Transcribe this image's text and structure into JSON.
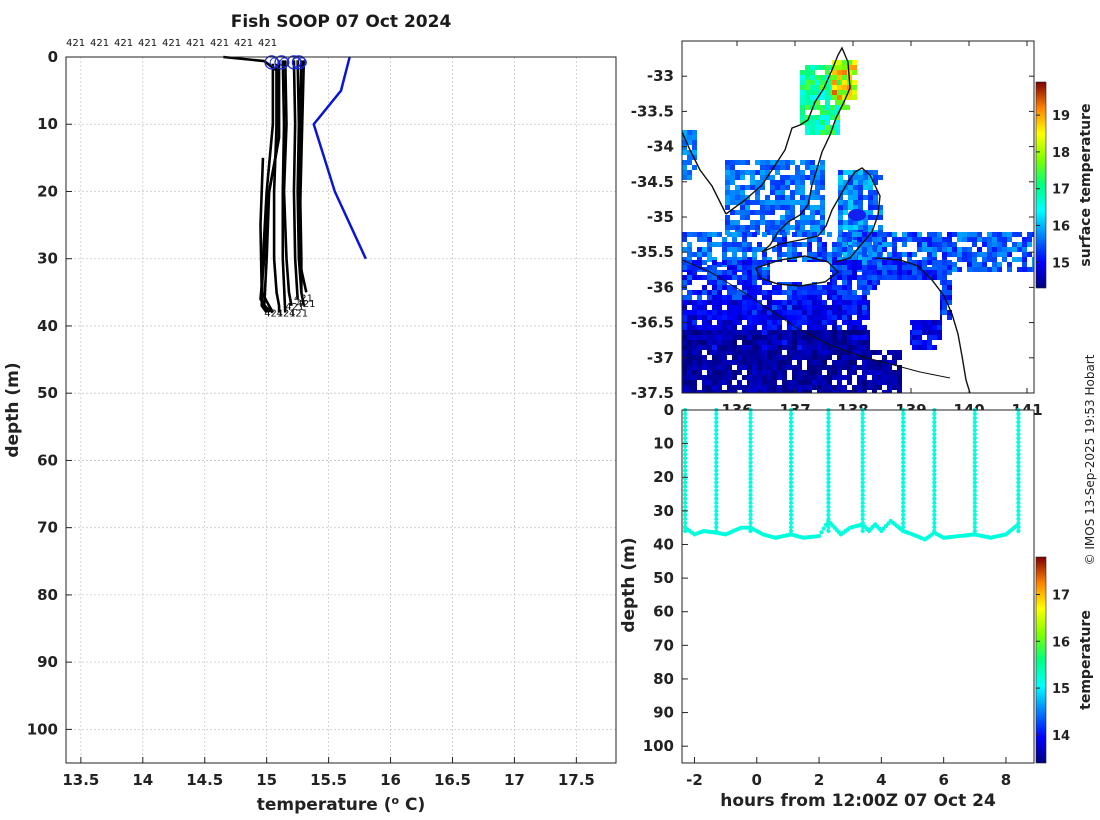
{
  "figure": {
    "credit": "© IMOS 13-Sep-2025 19:53 Hobart"
  },
  "chart_data": [
    {
      "id": "profile",
      "type": "line",
      "title": "Fish SOOP 07 Oct 2024",
      "xlabel": "temperature (",
      "xlabel_sup": "o",
      "xlabel_end": " C)",
      "ylabel": "depth (m)",
      "xlim": [
        13.38,
        17.82
      ],
      "ylim": [
        0,
        105
      ],
      "y_inverted": true,
      "xticks": [
        13.5,
        14,
        14.5,
        15,
        15.5,
        16,
        16.5,
        17,
        17.5
      ],
      "xtick_labels": [
        "13.5",
        "14",
        "14.5",
        "15",
        "15.5",
        "16",
        "16.5",
        "17",
        "17.5"
      ],
      "yticks": [
        0,
        10,
        20,
        30,
        40,
        50,
        60,
        70,
        80,
        90,
        100
      ],
      "ytick_labels": [
        "0",
        "10",
        "20",
        "30",
        "40",
        "50",
        "60",
        "70",
        "80",
        "90",
        "100"
      ],
      "top_annotations": [
        "421",
        "421",
        "421",
        "421",
        "421",
        "421",
        "421",
        "421",
        "421"
      ],
      "bottom_annotations": [
        "421",
        "421",
        "421",
        "421",
        "421",
        "421"
      ],
      "reference_profile": {
        "name": "climatology",
        "color": "#0a14d8",
        "temperature": [
          15.67,
          15.6,
          15.38,
          15.55,
          15.8
        ],
        "depth": [
          0,
          5,
          10,
          20,
          30
        ]
      },
      "profiles": [
        {
          "temperature": [
            14.65,
            14.98,
            15.08,
            15.08,
            15.06,
            15.06,
            15.08,
            15.1,
            15.1
          ],
          "depth": [
            0,
            0.6,
            2,
            10,
            20,
            30,
            35,
            37,
            38
          ]
        },
        {
          "temperature": [
            15.1,
            15.1,
            15.1,
            15.08,
            15.02,
            15.0,
            14.98,
            15.05
          ],
          "depth": [
            0.5,
            10,
            12,
            14,
            20,
            30,
            37,
            38
          ]
        },
        {
          "temperature": [
            15.28,
            15.27,
            15.27,
            15.28,
            15.28,
            15.3
          ],
          "depth": [
            0.5,
            10,
            20,
            30,
            35,
            37
          ]
        },
        {
          "temperature": [
            15.15,
            15.16,
            15.14,
            15.16,
            15.18,
            15.2
          ],
          "depth": [
            0.5,
            10,
            20,
            30,
            35,
            37
          ]
        },
        {
          "temperature": [
            15.13,
            15.14,
            15.13,
            15.13,
            15.15
          ],
          "depth": [
            0.5,
            10,
            20,
            30,
            38
          ]
        },
        {
          "temperature": [
            15.22,
            15.23,
            15.22,
            15.23,
            15.25
          ],
          "depth": [
            0.5,
            10,
            20,
            30,
            36
          ]
        },
        {
          "temperature": [
            15.25,
            15.26,
            15.25,
            15.26,
            15.28
          ],
          "depth": [
            0.5,
            10,
            20,
            30,
            35
          ]
        },
        {
          "temperature": [
            15.05,
            15.05,
            15.0,
            14.97,
            14.96,
            15.0
          ],
          "depth": [
            1,
            10,
            20,
            30,
            37,
            38
          ]
        },
        {
          "temperature": [
            15.08,
            15.08,
            15.0,
            14.98,
            14.95,
            15.02
          ],
          "depth": [
            1,
            14,
            22,
            30,
            36,
            38
          ]
        },
        {
          "temperature": [
            14.97,
            14.95,
            14.96,
            15.05
          ],
          "depth": [
            15,
            25,
            35,
            38
          ]
        },
        {
          "temperature": [
            15.3,
            15.28,
            15.26,
            15.32
          ],
          "depth": [
            0.5,
            15,
            30,
            35
          ]
        }
      ],
      "surface_markers": [
        15.04,
        15.12,
        15.22,
        15.26
      ]
    },
    {
      "id": "sst_map",
      "type": "heatmap",
      "colorbar_label": "surface temperature",
      "colorbar_ticks": [
        "15",
        "16",
        "17",
        "18",
        "19"
      ],
      "colorbar_values": [
        15,
        16,
        17,
        18,
        19
      ],
      "colorbar_range": [
        14.3,
        19.9
      ],
      "ylim": [
        -37.5,
        -32.5
      ],
      "yticks": [
        -33,
        -33.5,
        -34,
        -34.5,
        -35,
        -35.5,
        -36,
        -36.5,
        -37,
        -37.5
      ],
      "ytick_labels": [
        "-33",
        "-33.5",
        "-34",
        "-34.5",
        "-35",
        "-35.5",
        "-36",
        "-36.5",
        "-37",
        "-37.5"
      ],
      "xtick_labels": [
        "136",
        "137",
        "138",
        "139",
        "140",
        "141"
      ],
      "position_marker": {
        "lon": 137.95,
        "lat": -34.98
      }
    },
    {
      "id": "depth_time",
      "type": "scatter",
      "xlabel": "hours from 12:00Z 07 Oct 24",
      "ylabel": "depth (m)",
      "xlim": [
        -2.4,
        8.9
      ],
      "ylim": [
        0,
        105
      ],
      "y_inverted": true,
      "xticks": [
        -2,
        0,
        2,
        4,
        6,
        8
      ],
      "xtick_labels": [
        "-2",
        "0",
        "2",
        "4",
        "6",
        "8"
      ],
      "yticks": [
        0,
        10,
        20,
        30,
        40,
        50,
        60,
        70,
        80,
        90,
        100
      ],
      "ytick_labels": [
        "0",
        "10",
        "20",
        "30",
        "40",
        "50",
        "60",
        "70",
        "80",
        "90",
        "100"
      ],
      "colorbar_label": "temperature",
      "colorbar_ticks": [
        "14",
        "15",
        "16",
        "17"
      ],
      "colorbar_values": [
        14,
        15,
        16,
        17
      ],
      "colorbar_range": [
        13.4,
        17.8
      ],
      "surfacing_hours": [
        -2.3,
        -1.3,
        -0.2,
        1.1,
        2.3,
        3.4,
        4.7,
        5.7,
        7.0,
        8.4
      ],
      "bottom_track": {
        "hours": [
          -2.3,
          -2.0,
          -1.7,
          -1.3,
          -1.0,
          -0.5,
          -0.2,
          0.2,
          0.6,
          1.1,
          1.5,
          2.0,
          2.3,
          2.7,
          3.0,
          3.4,
          3.6,
          3.8,
          4.0,
          4.3,
          4.7,
          5.0,
          5.4,
          5.7,
          6.0,
          6.5,
          7.0,
          7.5,
          8.0,
          8.4
        ],
        "depth": [
          35,
          37,
          36,
          36.5,
          37,
          35,
          35,
          37,
          38,
          37,
          38,
          37.5,
          33,
          37,
          35,
          34,
          36,
          34,
          36,
          33,
          36,
          37,
          38.5,
          36.5,
          38,
          37.5,
          37,
          38,
          37,
          34
        ]
      },
      "marker_temperature": 15.2
    }
  ]
}
